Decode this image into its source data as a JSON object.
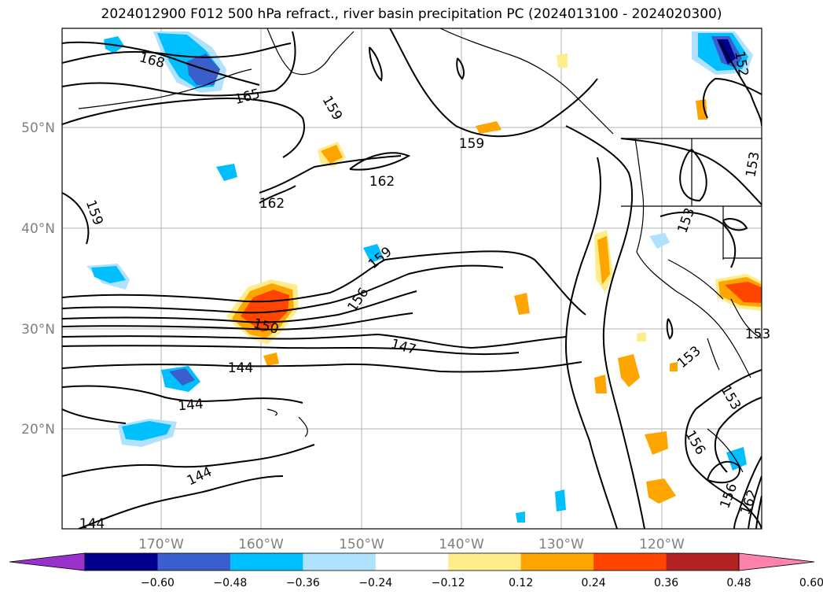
{
  "title": "2024012900 F012 500 hPa refract., river basin precipitation PC (2024013100 - 2024020300)",
  "lat_labels": [
    "50°N",
    "40°N",
    "30°N",
    "20°N"
  ],
  "lon_labels": [
    "170°W",
    "160°W",
    "150°W",
    "140°W",
    "130°W",
    "120°W"
  ],
  "contour_labels": [
    "168",
    "165",
    "159",
    "159",
    "162",
    "162",
    "159",
    "159",
    "156",
    "150",
    "147",
    "144",
    "144",
    "144",
    "144",
    "153",
    "153",
    "153",
    "156",
    "156",
    "152",
    "162",
    "153",
    "153"
  ],
  "colorbar": {
    "ticks": [
      "−0.60",
      "−0.48",
      "−0.36",
      "−0.24",
      "−0.12",
      "0.12",
      "0.24",
      "0.36",
      "0.48",
      "0.60"
    ],
    "colors": [
      "#9932cc",
      "#00008b",
      "#3a5fcd",
      "#00bfff",
      "#b0e2ff",
      "#ffffff",
      "#ffec8b",
      "#ffa500",
      "#ff4500",
      "#b22222",
      "#ff82ab"
    ]
  }
}
